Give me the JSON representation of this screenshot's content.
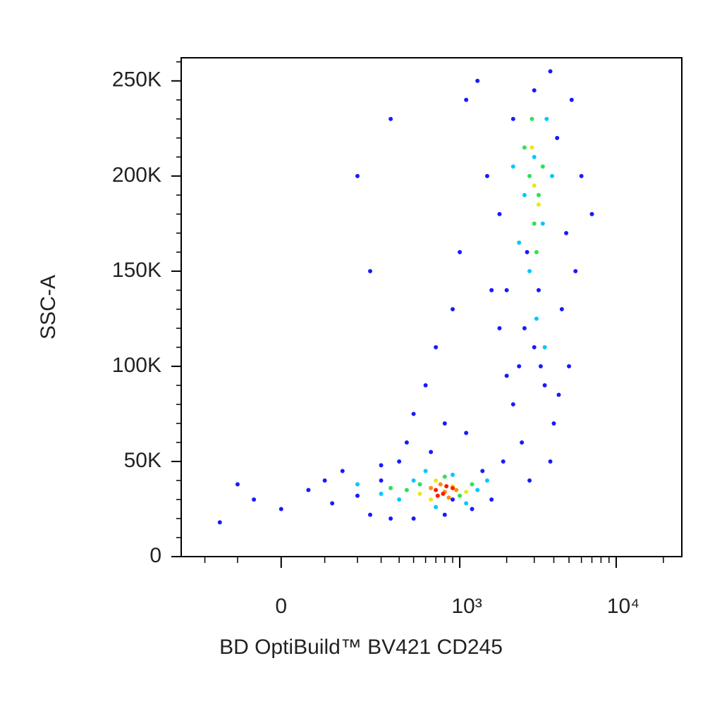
{
  "chart_data": {
    "type": "scatter",
    "x_label": "BD OptiBuild™ BV421 CD245",
    "y_label": "SSC-A",
    "xscale": "biexponential",
    "xlim": [
      -300,
      26214
    ],
    "xticks": [
      0,
      {
        "value": 1000,
        "label": "10³"
      },
      {
        "value": 10000,
        "label": "10⁴"
      }
    ],
    "xminorticks": [
      -200,
      -100,
      100,
      200,
      300,
      400,
      500,
      600,
      700,
      800,
      900,
      2000,
      3000,
      4000,
      5000,
      6000,
      7000,
      8000,
      9000,
      20000
    ],
    "ylim": [
      0,
      262144
    ],
    "yticks": [
      0,
      {
        "value": 50000,
        "label": "50K"
      },
      {
        "value": 100000,
        "label": "100K"
      },
      {
        "value": 150000,
        "label": "150K"
      },
      {
        "value": 200000,
        "label": "200K"
      },
      {
        "value": 250000,
        "label": "250K"
      }
    ],
    "yminorticks": [
      10000,
      20000,
      30000,
      40000,
      60000,
      70000,
      80000,
      90000,
      110000,
      120000,
      130000,
      140000,
      160000,
      170000,
      180000,
      190000,
      210000,
      220000,
      230000,
      240000,
      260000
    ],
    "series": [
      {
        "color": "#1a1aff",
        "x": [
          -150,
          -60,
          0,
          60,
          120,
          150,
          200,
          250,
          300,
          350,
          400,
          450,
          500,
          250,
          200,
          350,
          600,
          700,
          800,
          900,
          1000,
          1100,
          1300,
          1500,
          1600,
          1800,
          2000,
          2200,
          2500,
          3000,
          3500,
          4000,
          4500,
          5000,
          5500,
          6000,
          7000,
          5200,
          3800,
          2800,
          1900,
          1400,
          800,
          500,
          1200,
          1600,
          2400,
          3200,
          2700,
          1800,
          2200,
          4200,
          3000,
          4800,
          900,
          100,
          -100,
          300,
          650,
          1100,
          3800,
          4300,
          2000,
          2600,
          3300
        ],
        "values": [
          18000,
          30000,
          25000,
          35000,
          28000,
          45000,
          32000,
          22000,
          40000,
          20000,
          50000,
          60000,
          75000,
          150000,
          200000,
          230000,
          90000,
          110000,
          70000,
          130000,
          160000,
          240000,
          250000,
          200000,
          140000,
          120000,
          95000,
          80000,
          60000,
          110000,
          90000,
          70000,
          130000,
          100000,
          150000,
          200000,
          180000,
          240000,
          255000,
          40000,
          50000,
          45000,
          22000,
          20000,
          25000,
          30000,
          100000,
          140000,
          160000,
          180000,
          230000,
          220000,
          245000,
          170000,
          30000,
          40000,
          38000,
          48000,
          55000,
          65000,
          50000,
          85000,
          140000,
          120000,
          100000
        ]
      },
      {
        "color": "#00c8ff",
        "x": [
          2600,
          3000,
          3400,
          2400,
          3600,
          2800,
          3900,
          2200,
          3100,
          3500,
          400,
          500,
          900,
          1300,
          300,
          700,
          1100,
          1500,
          600,
          200
        ],
        "values": [
          190000,
          210000,
          175000,
          165000,
          230000,
          150000,
          200000,
          205000,
          125000,
          110000,
          30000,
          40000,
          43000,
          35000,
          33000,
          26000,
          28000,
          40000,
          45000,
          38000
        ]
      },
      {
        "color": "#2ee05a",
        "x": [
          2800,
          3200,
          2600,
          3000,
          3400,
          2900,
          3100,
          450,
          550,
          1200,
          1000,
          800,
          350
        ],
        "values": [
          200000,
          190000,
          215000,
          175000,
          205000,
          230000,
          160000,
          35000,
          38000,
          38000,
          32000,
          42000,
          36000
        ]
      },
      {
        "color": "#e8e81a",
        "x": [
          3000,
          3200,
          2900,
          550,
          900,
          1100,
          700,
          650
        ],
        "values": [
          195000,
          185000,
          215000,
          33000,
          37000,
          34000,
          40000,
          30000
        ]
      },
      {
        "color": "#ff8c00",
        "x": [
          650,
          800,
          950,
          750,
          850
        ],
        "values": [
          36000,
          34000,
          35000,
          38000,
          31000
        ]
      },
      {
        "color": "#ff1a00",
        "x": [
          700,
          780,
          900,
          820,
          720
        ],
        "values": [
          35000,
          33000,
          36000,
          37000,
          32000
        ]
      }
    ]
  }
}
